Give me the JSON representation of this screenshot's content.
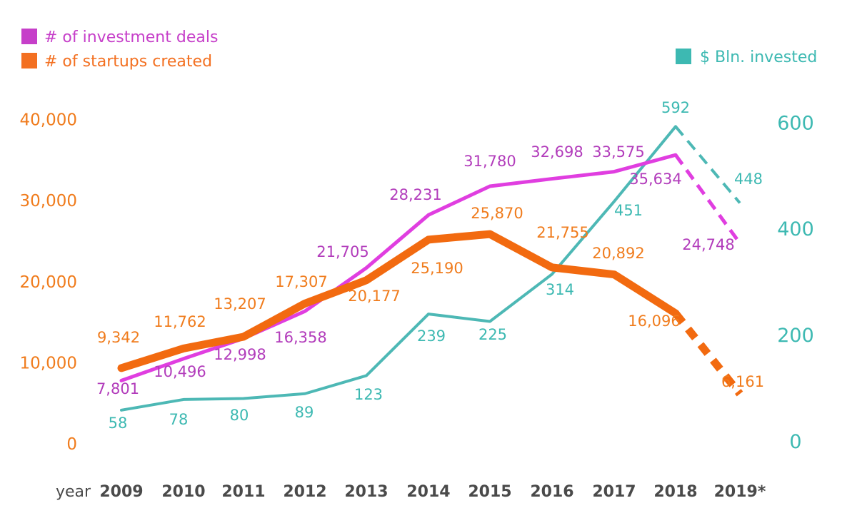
{
  "chart_data": {
    "type": "line",
    "categories": [
      "2009",
      "2010",
      "2011",
      "2012",
      "2013",
      "2014",
      "2015",
      "2016",
      "2017",
      "2018",
      "2019*"
    ],
    "x_axis_name": "year",
    "y_left": {
      "ticks": [
        "40,000",
        "30,000",
        "20,000",
        "10,000",
        "0"
      ],
      "tick_values": [
        40000,
        30000,
        20000,
        10000,
        0
      ],
      "ylim": [
        0,
        42000
      ]
    },
    "y_right": {
      "ticks": [
        "600",
        "400",
        "200",
        "0"
      ],
      "tick_values": [
        600,
        400,
        200,
        0
      ],
      "ylim": [
        0,
        630
      ]
    },
    "legend": [
      {
        "text": "# of investment deals",
        "color": "#c63fc9"
      },
      {
        "text": "# of startups created",
        "color": "#f37021"
      },
      {
        "text": "$ Bln. invested",
        "color": "#3db9b2"
      }
    ],
    "series": [
      {
        "name": "# of investment deals",
        "axis": "left",
        "color": "#e03ee0",
        "label_color": "#b23cbb",
        "values": [
          7801,
          10496,
          12998,
          16358,
          21705,
          28231,
          31780,
          32698,
          33575,
          35634,
          24748
        ],
        "labels": [
          "7,801",
          "10,496",
          "12,998",
          "16,358",
          "21,705",
          "28,231",
          "31,780",
          "32,698",
          "33,575",
          "35,634",
          "24,748"
        ],
        "dashed_from_index": 9
      },
      {
        "name": "# of startups created",
        "axis": "left",
        "color": "#f26a10",
        "label_color": "#f07c1d",
        "values": [
          9342,
          11762,
          13207,
          17307,
          20177,
          25190,
          25870,
          21755,
          20892,
          16096,
          6161
        ],
        "labels": [
          "9,342",
          "11,762",
          "13,207",
          "17,307",
          "20,177",
          "25,190",
          "25,870",
          "21,755",
          "20,892",
          "16,096",
          "6,161"
        ],
        "dashed_from_index": 9
      },
      {
        "name": "$ Bln. invested",
        "axis": "right",
        "color": "#4db8b5",
        "label_color": "#3db9b2",
        "values": [
          58,
          78,
          80,
          89,
          123,
          239,
          225,
          314,
          451,
          592,
          448
        ],
        "labels": [
          "58",
          "78",
          "80",
          "89",
          "123",
          "239",
          "225",
          "314",
          "451",
          "592",
          "448"
        ],
        "dashed_from_index": 9
      }
    ]
  }
}
